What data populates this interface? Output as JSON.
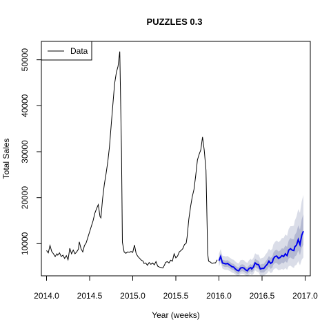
{
  "chart_data": {
    "type": "line",
    "title": "PUZZLES 0.3",
    "xlabel": "Year (weeks)",
    "ylabel": "Total Sales",
    "xlim": [
      2013.94,
      2017.06
    ],
    "ylim": [
      3000,
      54000
    ],
    "x_ticks": [
      2014.0,
      2014.5,
      2015.0,
      2015.5,
      2016.0,
      2016.5,
      2017.0
    ],
    "x_tick_labels": [
      "2014.0",
      "2014.5",
      "2015.0",
      "2015.5",
      "2016.0",
      "2016.5",
      "2017.0"
    ],
    "y_ticks": [
      10000,
      20000,
      30000,
      40000,
      50000
    ],
    "y_tick_labels": [
      "10000",
      "20000",
      "30000",
      "40000",
      "50000"
    ],
    "legend": {
      "position": "top-left",
      "entries": [
        "Data"
      ]
    },
    "colors": {
      "data": "#000000",
      "forecast": "#0000ee",
      "band_outer": "#dadde8",
      "band_inner": "#b4b9d2"
    },
    "series": [
      {
        "name": "Data",
        "x": [
          2014.0,
          2014.02,
          2014.04,
          2014.06,
          2014.08,
          2014.1,
          2014.12,
          2014.13,
          2014.15,
          2014.17,
          2014.19,
          2014.21,
          2014.23,
          2014.25,
          2014.27,
          2014.29,
          2014.31,
          2014.33,
          2014.35,
          2014.37,
          2014.38,
          2014.4,
          2014.42,
          2014.44,
          2014.46,
          2014.48,
          2014.5,
          2014.52,
          2014.54,
          2014.56,
          2014.58,
          2014.6,
          2014.62,
          2014.63,
          2014.65,
          2014.67,
          2014.69,
          2014.71,
          2014.73,
          2014.75,
          2014.77,
          2014.79,
          2014.81,
          2014.83,
          2014.85,
          2014.87,
          2014.88,
          2014.9,
          2014.92,
          2014.94,
          2014.96,
          2014.98,
          2015.0,
          2015.02,
          2015.04,
          2015.06,
          2015.08,
          2015.1,
          2015.12,
          2015.13,
          2015.15,
          2015.17,
          2015.19,
          2015.21,
          2015.23,
          2015.25,
          2015.27,
          2015.29,
          2015.31,
          2015.33,
          2015.35,
          2015.37,
          2015.38,
          2015.4,
          2015.42,
          2015.44,
          2015.46,
          2015.48,
          2015.5,
          2015.52,
          2015.54,
          2015.56,
          2015.58,
          2015.6,
          2015.62,
          2015.63,
          2015.65,
          2015.67,
          2015.69,
          2015.71,
          2015.73,
          2015.75,
          2015.77,
          2015.79,
          2015.81,
          2015.83,
          2015.85,
          2015.87,
          2015.88,
          2015.9,
          2015.92,
          2015.94,
          2015.96,
          2015.98
        ],
        "y": [
          8500,
          8000,
          9600,
          8300,
          7800,
          7200,
          7800,
          7500,
          8000,
          7200,
          7500,
          6800,
          7400,
          6500,
          9000,
          7800,
          8600,
          7800,
          8200,
          8800,
          10400,
          8900,
          8200,
          9600,
          10200,
          11400,
          12600,
          13800,
          15000,
          16600,
          17600,
          18500,
          15900,
          15600,
          19800,
          22900,
          25200,
          27800,
          31000,
          35700,
          40300,
          44800,
          47200,
          48600,
          51800,
          30000,
          10300,
          8200,
          7900,
          8200,
          8100,
          8300,
          8100,
          9700,
          7800,
          7200,
          6800,
          6400,
          6200,
          5700,
          5800,
          5300,
          5900,
          5500,
          5800,
          5400,
          6100,
          5100,
          4900,
          4800,
          4700,
          5400,
          5900,
          6100,
          5800,
          6400,
          6200,
          7800,
          6900,
          7300,
          8200,
          8500,
          8900,
          9800,
          10100,
          11400,
          15300,
          18000,
          20200,
          21800,
          24800,
          28200,
          29400,
          30400,
          33200,
          30300,
          26000,
          7800,
          6200,
          6000,
          5700,
          5800,
          5800,
          6500
        ]
      },
      {
        "name": "",
        "x": [
          2016.0,
          2016.02,
          2016.04,
          2016.06,
          2016.08,
          2016.1,
          2016.12,
          2016.13,
          2016.15,
          2016.17,
          2016.19,
          2016.21,
          2016.23,
          2016.25,
          2016.27,
          2016.29,
          2016.31,
          2016.33,
          2016.35,
          2016.37,
          2016.38,
          2016.4,
          2016.42,
          2016.44,
          2016.46,
          2016.48,
          2016.5,
          2016.52,
          2016.54,
          2016.56,
          2016.58,
          2016.6,
          2016.62,
          2016.63,
          2016.65,
          2016.67,
          2016.69,
          2016.71,
          2016.73,
          2016.75,
          2016.77,
          2016.79,
          2016.81,
          2016.83,
          2016.85,
          2016.87,
          2016.88,
          2016.9,
          2016.92,
          2016.94,
          2016.96,
          2016.98
        ],
        "y": [
          6300,
          7200,
          5800,
          5700,
          5600,
          5700,
          5400,
          5300,
          5000,
          4900,
          4500,
          4200,
          4100,
          4700,
          4800,
          4700,
          4300,
          4100,
          4600,
          4800,
          4500,
          4900,
          5800,
          5500,
          5400,
          4500,
          4600,
          4600,
          5100,
          5500,
          6200,
          5700,
          6000,
          6700,
          7200,
          7300,
          6800,
          7000,
          7400,
          7200,
          7800,
          7400,
          8600,
          8900,
          8600,
          8500,
          9300,
          9700,
          10900,
          9800,
          11800,
          12700
        ],
        "upper_outer": [
          7800,
          8800,
          7400,
          7300,
          7200,
          7300,
          7000,
          6900,
          6600,
          6500,
          6100,
          5800,
          5700,
          6400,
          6500,
          6400,
          6000,
          5800,
          6400,
          6700,
          6400,
          6900,
          7900,
          7600,
          7600,
          6700,
          6900,
          7000,
          7600,
          8100,
          8900,
          8500,
          8900,
          9800,
          10400,
          10700,
          10300,
          10600,
          11200,
          11200,
          12000,
          11700,
          13200,
          13800,
          13800,
          13900,
          15000,
          15900,
          17500,
          16700,
          19200,
          20600
        ],
        "lower_outer": [
          5000,
          5900,
          4600,
          4400,
          4300,
          4300,
          4100,
          4000,
          3700,
          3600,
          3300,
          3000,
          3000,
          3400,
          3500,
          3400,
          3100,
          2900,
          3200,
          3400,
          3100,
          3400,
          4200,
          3900,
          3800,
          3000,
          3000,
          3000,
          3300,
          3600,
          4100,
          3600,
          3800,
          4300,
          4600,
          4600,
          4200,
          4300,
          4500,
          4300,
          4700,
          4300,
          5100,
          5200,
          4900,
          4700,
          5200,
          5400,
          6200,
          5300,
          6500,
          7000
        ],
        "upper_inner": [
          6900,
          7900,
          6500,
          6400,
          6300,
          6400,
          6100,
          6000,
          5700,
          5600,
          5200,
          4900,
          4800,
          5400,
          5500,
          5400,
          5000,
          4800,
          5300,
          5600,
          5300,
          5700,
          6700,
          6400,
          6300,
          5400,
          5600,
          5600,
          6100,
          6600,
          7300,
          6900,
          7200,
          8000,
          8500,
          8700,
          8300,
          8500,
          9000,
          8900,
          9600,
          9300,
          10700,
          11200,
          11000,
          11000,
          11900,
          12500,
          14000,
          13000,
          15300,
          16400
        ],
        "lower_inner": [
          5600,
          6500,
          5200,
          5000,
          4900,
          5000,
          4700,
          4600,
          4300,
          4200,
          3800,
          3500,
          3400,
          3900,
          4000,
          3900,
          3600,
          3400,
          3800,
          4000,
          3700,
          4100,
          4900,
          4600,
          4500,
          3700,
          3700,
          3700,
          4100,
          4400,
          5000,
          4500,
          4800,
          5400,
          5800,
          5800,
          5400,
          5500,
          5900,
          5700,
          6200,
          5800,
          6800,
          7000,
          6700,
          6600,
          7200,
          7500,
          8500,
          7500,
          9100,
          9800
        ]
      }
    ]
  }
}
